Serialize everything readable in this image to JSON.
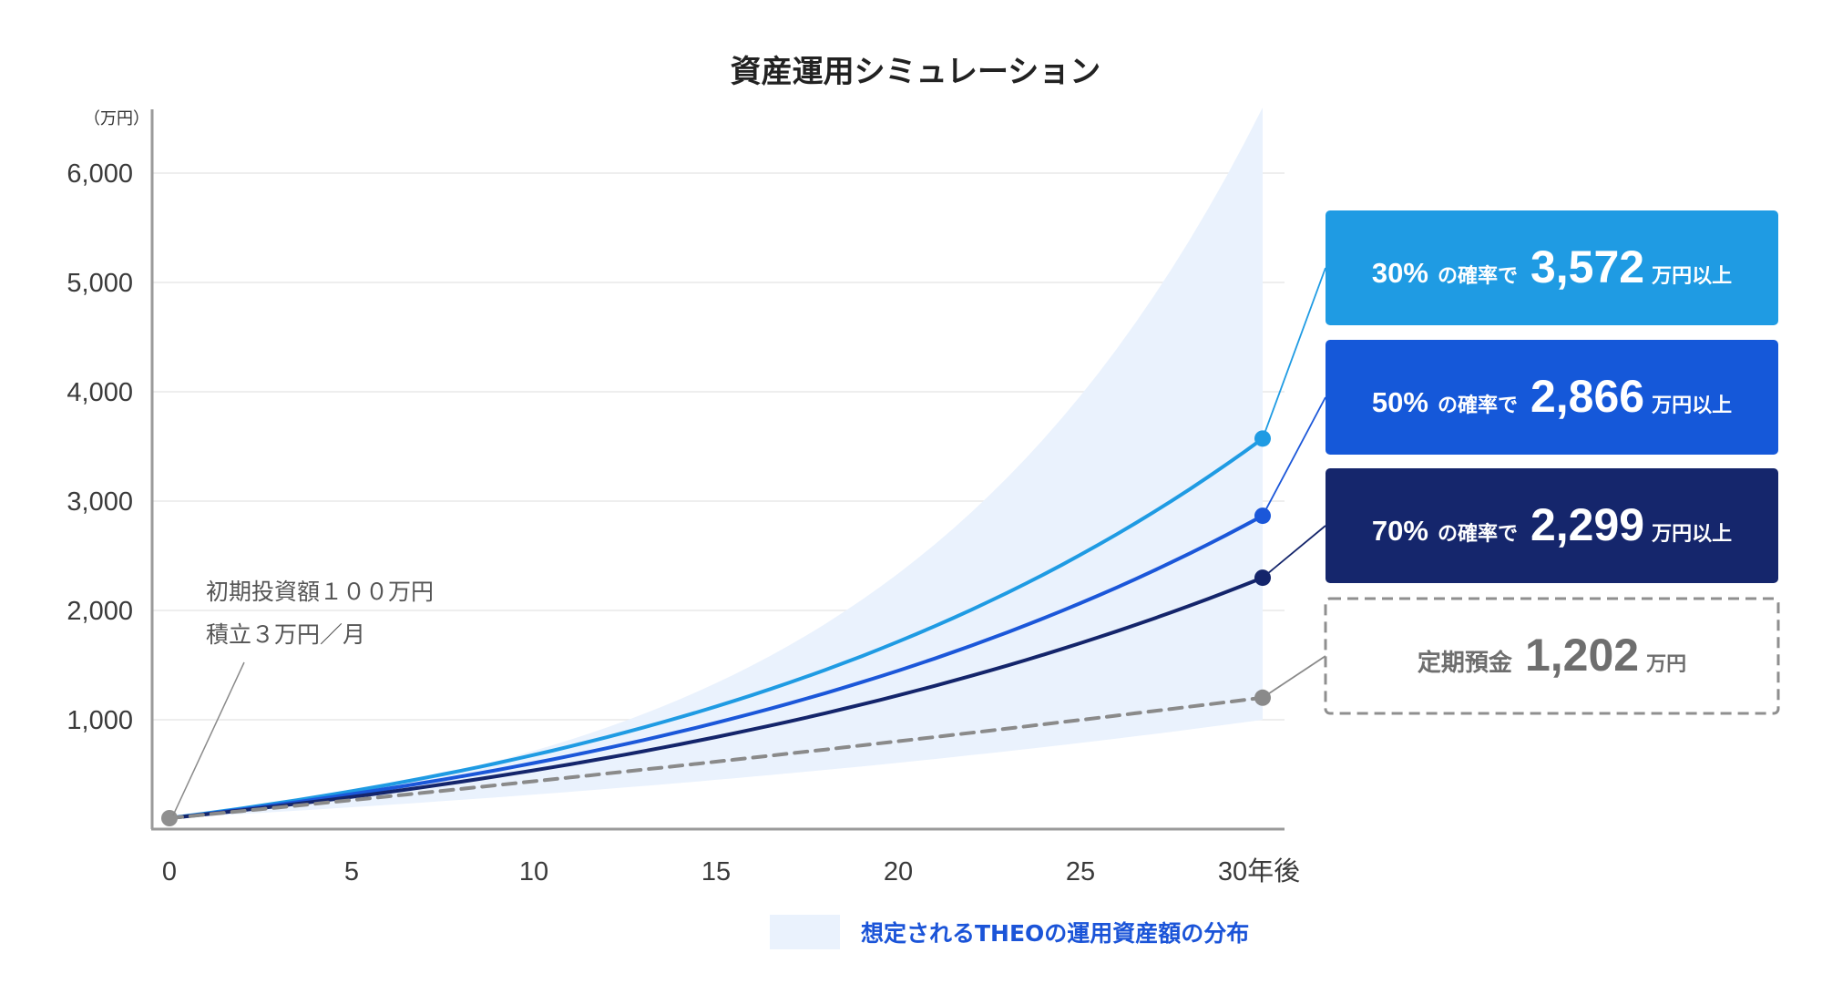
{
  "chart_data": {
    "type": "line",
    "title": "資産運用シミュレーション",
    "ylabel": "（万円）",
    "x_unit_label": "30年後",
    "xlim": [
      0,
      30
    ],
    "ylim": [
      0,
      6500
    ],
    "x_ticks": [
      "0",
      "5",
      "10",
      "15",
      "20",
      "25",
      "30年後"
    ],
    "y_ticks": [
      "1,000",
      "2,000",
      "3,000",
      "4,000",
      "5,000",
      "6,000"
    ],
    "grid": true,
    "note_lines": [
      "初期投資額１００万円",
      "積立３万円／月"
    ],
    "legend": {
      "label": "想定されるTHEOの運用資産額の分布",
      "placement": "bottom-right"
    },
    "distribution_band": {
      "x_end": 30,
      "upper_end": 6600,
      "lower_end": 1000,
      "color": "#eaf2fd"
    },
    "series": [
      {
        "name": "30%",
        "prob_label": "30%",
        "mid_label": "の確率で",
        "value_label": "3,572",
        "unit_label": "万円以上",
        "end_value": 3572,
        "color": "#1f9be3",
        "style": "solid",
        "box_fill": "#1f9be3"
      },
      {
        "name": "50%",
        "prob_label": "50%",
        "mid_label": "の確率で",
        "value_label": "2,866",
        "unit_label": "万円以上",
        "end_value": 2866,
        "color": "#1b57d9",
        "style": "solid",
        "box_fill": "#1558d9"
      },
      {
        "name": "70%",
        "prob_label": "70%",
        "mid_label": "の確率で",
        "value_label": "2,299",
        "unit_label": "万円以上",
        "end_value": 2299,
        "color": "#14256b",
        "style": "solid",
        "box_fill": "#15266c"
      },
      {
        "name": "定期預金",
        "prob_label": "定期預金",
        "mid_label": "",
        "value_label": "1,202",
        "unit_label": "万円",
        "end_value": 1202,
        "color": "#8a8a8a",
        "style": "dashed",
        "box_fill": "#ffffff"
      }
    ],
    "start_value": 100
  }
}
